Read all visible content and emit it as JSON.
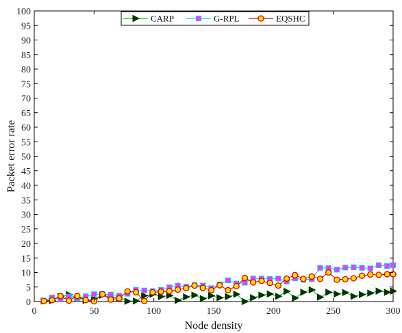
{
  "chart_data": {
    "type": "line",
    "xlabel": "Node density",
    "ylabel": "Packet error rate",
    "xlim": [
      0,
      300
    ],
    "ylim": [
      0,
      100
    ],
    "xticks": [
      0,
      50,
      100,
      150,
      200,
      250,
      300
    ],
    "yticks": [
      0,
      5,
      10,
      15,
      20,
      25,
      30,
      35,
      40,
      45,
      50,
      55,
      60,
      65,
      70,
      75,
      80,
      85,
      90,
      95,
      100
    ],
    "grid": false,
    "legend_position": "top-center",
    "series": [
      {
        "name": "CARP",
        "color": "#00cc00",
        "marker": "triangle-right",
        "marker_color": "#003300",
        "x": [
          8,
          15,
          22,
          29,
          36,
          43,
          50,
          57,
          64,
          71,
          78,
          85,
          92,
          99,
          106,
          113,
          120,
          127,
          134,
          141,
          148,
          155,
          162,
          169,
          176,
          183,
          190,
          197,
          204,
          211,
          218,
          225,
          232,
          239,
          246,
          253,
          260,
          267,
          274,
          281,
          288,
          295,
          300
        ],
        "y": [
          0.2,
          0.3,
          1.8,
          2.4,
          1.2,
          0.4,
          0.9,
          2.2,
          1.5,
          1.2,
          0.1,
          0.2,
          2.0,
          2.5,
          1.7,
          2.1,
          0.4,
          1.6,
          2.2,
          1.0,
          2.0,
          1.3,
          1.7,
          2.5,
          0.0,
          1.3,
          2.2,
          2.6,
          1.8,
          3.5,
          1.2,
          3.2,
          4.0,
          1.5,
          3.2,
          2.6,
          3.1,
          1.8,
          2.4,
          2.9,
          3.6,
          3.2,
          3.6
        ]
      },
      {
        "name": "G-RPL",
        "color": "#00ccff",
        "marker": "square",
        "marker_color": "#ff33ff",
        "x": [
          8,
          15,
          22,
          29,
          36,
          43,
          50,
          57,
          64,
          71,
          78,
          85,
          92,
          99,
          106,
          113,
          120,
          127,
          134,
          141,
          148,
          155,
          162,
          169,
          176,
          183,
          190,
          197,
          204,
          211,
          218,
          225,
          232,
          239,
          246,
          253,
          260,
          267,
          274,
          281,
          288,
          295,
          300
        ],
        "y": [
          0.3,
          1.4,
          0.7,
          1.7,
          1.2,
          1.8,
          2.5,
          2.6,
          2.4,
          2.0,
          2.7,
          4.0,
          3.8,
          3.6,
          4.0,
          4.9,
          5.5,
          5.1,
          5.6,
          5.5,
          4.6,
          5.9,
          7.3,
          6.2,
          6.5,
          7.9,
          7.9,
          7.8,
          7.9,
          6.9,
          8.0,
          7.5,
          7.7,
          11.6,
          11.5,
          11.0,
          11.7,
          11.8,
          11.6,
          11.4,
          12.5,
          12.2,
          12.5
        ]
      },
      {
        "name": "EQSHC",
        "color": "#dd0000",
        "marker": "circle",
        "marker_color": "#ffdd00",
        "x": [
          8,
          15,
          22,
          29,
          36,
          43,
          50,
          57,
          64,
          71,
          78,
          85,
          92,
          99,
          106,
          113,
          120,
          127,
          134,
          141,
          148,
          155,
          162,
          169,
          176,
          183,
          190,
          197,
          204,
          211,
          218,
          225,
          232,
          239,
          246,
          253,
          260,
          267,
          274,
          281,
          288,
          295,
          300
        ],
        "y": [
          0.2,
          0.5,
          1.9,
          0.3,
          1.9,
          0.5,
          0.1,
          2.5,
          0.7,
          1.1,
          3.5,
          3.2,
          0.2,
          3.2,
          3.4,
          3.6,
          4.1,
          4.6,
          5.5,
          4.7,
          3.9,
          5.6,
          3.9,
          5.3,
          8.1,
          6.6,
          7.1,
          6.4,
          5.5,
          7.9,
          9.1,
          7.8,
          8.6,
          7.8,
          10.0,
          7.5,
          7.7,
          8.0,
          8.9,
          9.3,
          9.2,
          9.4,
          9.4
        ]
      }
    ]
  }
}
